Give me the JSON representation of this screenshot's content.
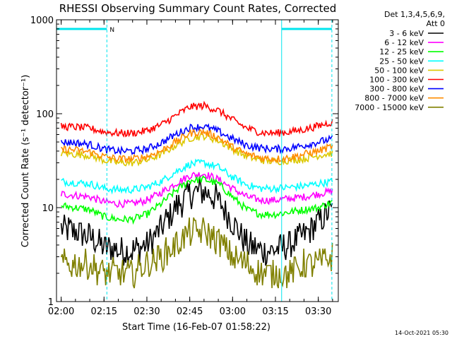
{
  "colors": {
    "background": "#ffffff",
    "axis": "#000000",
    "marker_lines": "#00e5ee",
    "att_bar": "#00e5ee"
  },
  "chart_data": {
    "type": "line",
    "title": "RHESSI Observing Summary Count Rates, Corrected",
    "xlabel": "Start Time (16-Feb-07 01:58:22)",
    "ylabel": "Corrected Count Rate (s⁻¹ detector⁻¹)",
    "yscale": "log",
    "xlim": [
      "01:58:22",
      "03:37:00"
    ],
    "ylim": [
      1,
      1000
    ],
    "xticks": [
      "02:00",
      "02:15",
      "02:30",
      "02:45",
      "03:00",
      "03:15",
      "03:30"
    ],
    "yticks": [
      "1",
      "10",
      "100",
      "1000"
    ],
    "grid": false,
    "legend_position": "right",
    "legend_header": [
      "Det 1,3,4,5,6,9,",
      "Att 0"
    ],
    "markers": {
      "solid_times": [
        "01:58:22",
        "03:17:10"
      ],
      "dashed_times": [
        "02:16:00",
        "03:34:45"
      ],
      "attenuator_bars": [
        {
          "start": "01:58:22",
          "end": "02:16:00",
          "label": "N"
        },
        {
          "start": "03:17:10",
          "end": "03:34:45",
          "label": ""
        }
      ]
    },
    "x": [
      "02:00",
      "02:05",
      "02:10",
      "02:15",
      "02:20",
      "02:25",
      "02:30",
      "02:35",
      "02:40",
      "02:45",
      "02:50",
      "02:55",
      "03:00",
      "03:05",
      "03:10",
      "03:15",
      "03:20",
      "03:25",
      "03:30",
      "03:35"
    ],
    "series": [
      {
        "name": "3 - 6 keV",
        "color": "#000000",
        "values": [
          6,
          5.5,
          5,
          3.8,
          3.5,
          3.5,
          4,
          6,
          10,
          14,
          15,
          12,
          7,
          4,
          3.5,
          3.5,
          4,
          5,
          7,
          9.5
        ]
      },
      {
        "name": "6 - 12 keV",
        "color": "#ff00ff",
        "values": [
          14,
          13.5,
          13,
          11.5,
          11,
          11,
          12,
          14.5,
          18,
          22,
          23,
          20,
          16,
          13,
          12,
          12,
          12.5,
          13,
          14,
          15
        ]
      },
      {
        "name": "12 - 25 keV",
        "color": "#00ff00",
        "values": [
          10.5,
          10,
          9.5,
          8,
          7.5,
          7.5,
          8.5,
          11,
          15,
          19.5,
          20,
          18,
          13,
          9.5,
          8.5,
          8.5,
          9,
          9.5,
          10,
          11.5
        ]
      },
      {
        "name": "25 - 50 keV",
        "color": "#00ffff",
        "values": [
          19,
          18.5,
          18,
          16,
          15.5,
          15.5,
          16.5,
          19,
          24,
          29,
          30,
          27,
          21,
          17.5,
          16,
          16,
          16.5,
          17,
          18,
          19
        ]
      },
      {
        "name": "50 - 100 keV",
        "color": "#dcc800",
        "values": [
          38,
          37,
          36,
          32,
          30,
          30,
          32,
          37,
          46,
          55,
          58,
          52,
          42,
          35,
          32,
          31,
          32,
          33,
          36,
          38
        ]
      },
      {
        "name": "100 - 300 keV",
        "color": "#ff0000",
        "values": [
          73,
          72,
          70,
          64,
          62,
          62,
          66,
          76,
          95,
          118,
          122,
          108,
          86,
          70,
          63,
          62,
          64,
          68,
          74,
          82
        ]
      },
      {
        "name": "300 - 800 keV",
        "color": "#0000ff",
        "values": [
          50,
          49,
          47,
          42,
          40,
          40,
          42,
          49,
          60,
          71,
          73,
          65,
          54,
          46,
          43,
          42,
          43,
          46,
          50,
          54
        ]
      },
      {
        "name": "800 - 7000 keV",
        "color": "#ff8c00",
        "values": [
          42,
          41,
          39,
          35,
          33,
          33,
          35,
          40,
          50,
          62,
          64,
          56,
          44,
          37,
          34,
          33,
          34,
          37,
          40,
          45
        ]
      },
      {
        "name": "7000 - 15000 keV",
        "color": "#808000",
        "values": [
          2.5,
          2.5,
          2.5,
          2,
          2,
          2,
          2.5,
          3,
          4,
          5.5,
          5.5,
          4.5,
          3,
          2.5,
          2,
          2,
          2,
          2.5,
          2.5,
          3
        ]
      }
    ]
  },
  "footer_timestamp": "14-Oct-2021 05:30"
}
